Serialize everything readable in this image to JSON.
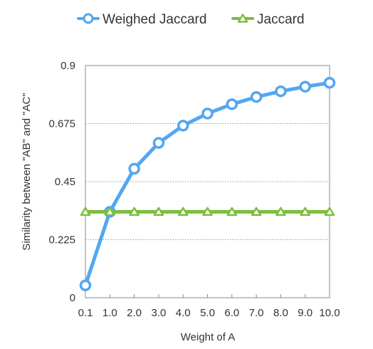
{
  "chart_data": {
    "type": "line",
    "title": "",
    "xlabel": "Weight of A",
    "ylabel": "Similarity between \"AB\" and \"AC\"",
    "categories": [
      "0.1",
      "1.0",
      "2.0",
      "3.0",
      "4.0",
      "5.0",
      "6.0",
      "7.0",
      "8.0",
      "9.0",
      "10.0"
    ],
    "ylim": [
      0,
      0.9
    ],
    "yticks": [
      "0",
      "0.225",
      "0.45",
      "0.675",
      "0.9"
    ],
    "grid": "horizontal dotted",
    "legend_position": "top-center",
    "series": [
      {
        "name": "Weighed Jaccard",
        "marker": "circle",
        "color": "#52a7f0",
        "values": [
          0.048,
          0.333,
          0.5,
          0.6,
          0.667,
          0.714,
          0.75,
          0.778,
          0.8,
          0.818,
          0.833
        ]
      },
      {
        "name": "Jaccard",
        "marker": "triangle",
        "color": "#7cbe3e",
        "values": [
          0.333,
          0.333,
          0.333,
          0.333,
          0.333,
          0.333,
          0.333,
          0.333,
          0.333,
          0.333,
          0.333
        ]
      }
    ]
  }
}
